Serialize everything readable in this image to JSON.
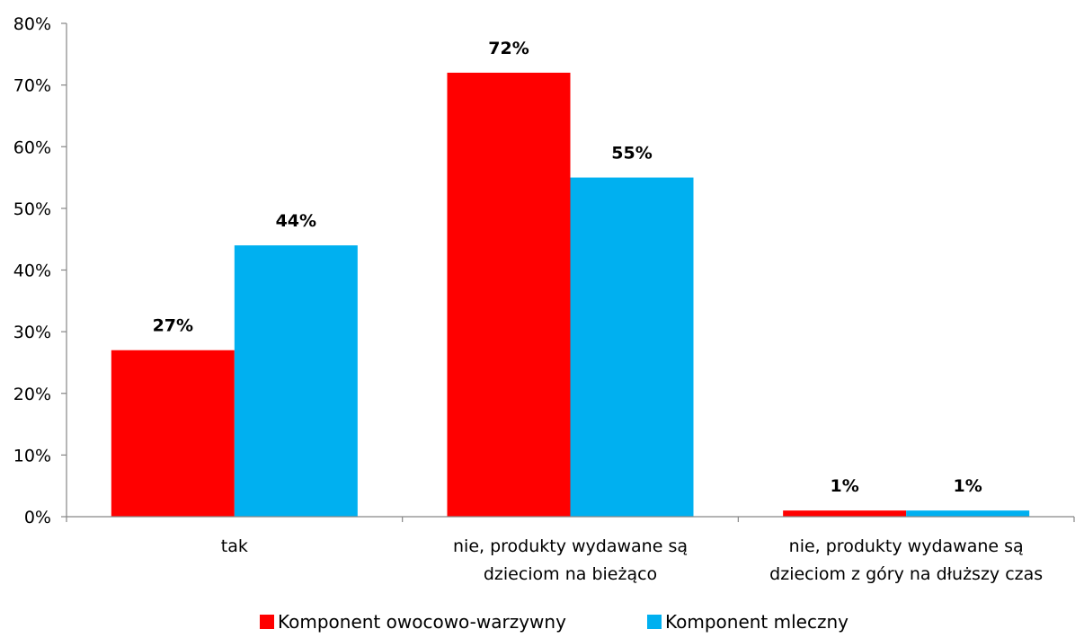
{
  "chart_data": {
    "type": "bar",
    "categories": [
      [
        "tak"
      ],
      [
        "nie, produkty wydawane są",
        "dzieciom na bieżąco"
      ],
      [
        "nie, produkty wydawane są",
        "dzieciom z góry na dłuższy czas"
      ]
    ],
    "series": [
      {
        "name": "Komponent owocowo-warzywny",
        "color": "#ff0000",
        "values": [
          27,
          72,
          1
        ],
        "labels": [
          "27%",
          "72%",
          "1%"
        ]
      },
      {
        "name": "Komponent mleczny",
        "color": "#00b0f0",
        "values": [
          44,
          55,
          1
        ],
        "labels": [
          "44%",
          "55%",
          "1%"
        ]
      }
    ],
    "ylim": [
      0,
      80
    ],
    "yticks": [
      {
        "value": 0,
        "label": "0%"
      },
      {
        "value": 10,
        "label": "10%"
      },
      {
        "value": 20,
        "label": "20%"
      },
      {
        "value": 30,
        "label": "30%"
      },
      {
        "value": 40,
        "label": "40%"
      },
      {
        "value": 50,
        "label": "50%"
      },
      {
        "value": 60,
        "label": "60%"
      },
      {
        "value": 70,
        "label": "70%"
      },
      {
        "value": 80,
        "label": "80%"
      }
    ],
    "grid": false,
    "legend_position": "bottom",
    "axis_color": "#868686"
  }
}
